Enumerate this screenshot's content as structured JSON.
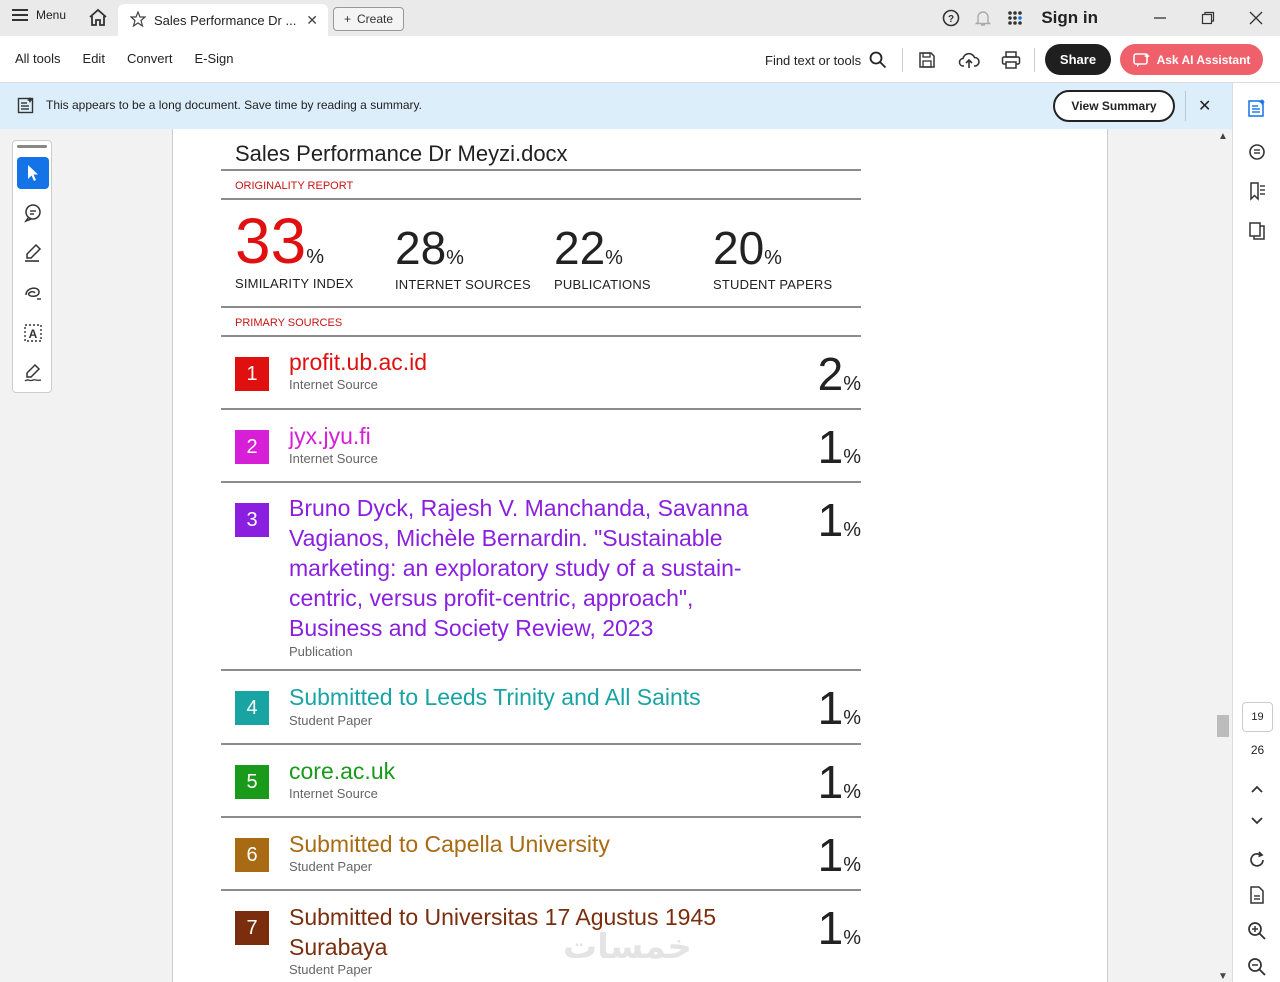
{
  "titlebar": {
    "menu_label": "Menu",
    "tab_title": "Sales Performance Dr ...",
    "create_label": "Create",
    "sign_in": "Sign in"
  },
  "toolbar": {
    "items": [
      "All tools",
      "Edit",
      "Convert",
      "E-Sign"
    ],
    "find_label": "Find text or tools",
    "share_label": "Share",
    "ai_label": "Ask AI Assistant"
  },
  "banner": {
    "text": "This appears to be a long document. Save time by reading a summary.",
    "button": "View Summary"
  },
  "document": {
    "title": "Sales Performance Dr Meyzi.docx",
    "originality_label": "ORIGINALITY REPORT",
    "stats": [
      {
        "value": "33",
        "unit": "%",
        "caption": "SIMILARITY INDEX"
      },
      {
        "value": "28",
        "unit": "%",
        "caption": "INTERNET SOURCES"
      },
      {
        "value": "22",
        "unit": "%",
        "caption": "PUBLICATIONS"
      },
      {
        "value": "20",
        "unit": "%",
        "caption": "STUDENT PAPERS"
      }
    ],
    "primary_label": "PRIMARY SOURCES",
    "sources": [
      {
        "num": "1",
        "color": "#e01010",
        "title": "profit.ub.ac.id",
        "type": "Internet Source",
        "pct": "2"
      },
      {
        "num": "2",
        "color": "#d61fd6",
        "title": "jyx.jyu.fi",
        "type": "Internet Source",
        "pct": "1"
      },
      {
        "num": "3",
        "color": "#8a1fe0",
        "title": "Bruno Dyck, Rajesh V. Manchanda, Savanna Vagianos, Michèle Bernardin. \"Sustainable marketing: an exploratory study of a sustain-centric, versus profit-centric, approach\", Business and Society Review, 2023",
        "type": "Publication",
        "pct": "1"
      },
      {
        "num": "4",
        "color": "#19a3a3",
        "title": "Submitted to Leeds Trinity and All Saints",
        "type": "Student Paper",
        "pct": "1"
      },
      {
        "num": "5",
        "color": "#1a9a1a",
        "title": "core.ac.uk",
        "type": "Internet Source",
        "pct": "1"
      },
      {
        "num": "6",
        "color": "#a86a12",
        "title": "Submitted to Capella University",
        "type": "Student Paper",
        "pct": "1"
      },
      {
        "num": "7",
        "color": "#7a2e0e",
        "title": "Submitted to Universitas 17 Agustus 1945 Surabaya",
        "type": "Student Paper",
        "pct": "1"
      }
    ],
    "pct_unit": "%"
  },
  "pagination": {
    "current": "19",
    "total": "26"
  },
  "watermark": "خمسات"
}
